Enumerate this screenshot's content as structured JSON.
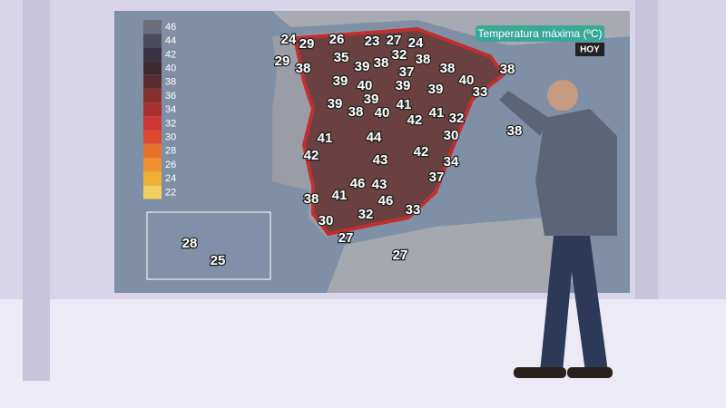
{
  "panel": {
    "title": "Temperatura máxima (ºC)",
    "day": "HOY"
  },
  "legend": [
    {
      "label": "46",
      "color": "#6c6c7c"
    },
    {
      "label": "44",
      "color": "#4c4c5a"
    },
    {
      "label": "42",
      "color": "#3a3240"
    },
    {
      "label": "40",
      "color": "#3e2a2e"
    },
    {
      "label": "38",
      "color": "#5a2c2e"
    },
    {
      "label": "36",
      "color": "#86302e"
    },
    {
      "label": "34",
      "color": "#aa3030"
    },
    {
      "label": "32",
      "color": "#d03636"
    },
    {
      "label": "30",
      "color": "#e0482e"
    },
    {
      "label": "28",
      "color": "#e8702e"
    },
    {
      "label": "26",
      "color": "#ee9030"
    },
    {
      "label": "24",
      "color": "#f0b030"
    },
    {
      "label": "22",
      "color": "#f2d060"
    }
  ],
  "readings": [
    "24",
    "29",
    "26",
    "23",
    "27",
    "24",
    "29",
    "38",
    "35",
    "39",
    "38",
    "32",
    "38",
    "38",
    "38",
    "39",
    "40",
    "37",
    "39",
    "39",
    "40",
    "33",
    "39",
    "39",
    "38",
    "40",
    "41",
    "42",
    "41",
    "32",
    "38",
    "41",
    "44",
    "30",
    "42",
    "43",
    "42",
    "34",
    "46",
    "41",
    "38",
    "43",
    "46",
    "37",
    "33",
    "30",
    "32",
    "27",
    "27",
    "28",
    "25"
  ]
}
